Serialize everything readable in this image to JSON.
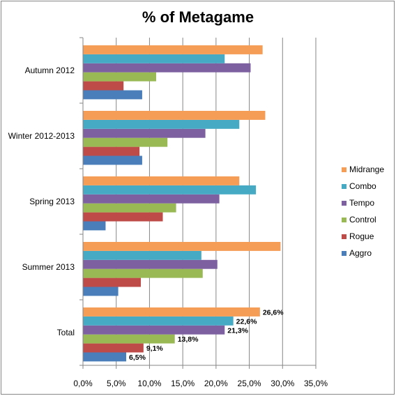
{
  "chart_data": {
    "type": "bar",
    "orientation": "horizontal",
    "title": "% of Metagame",
    "xlabel": "",
    "ylabel": "",
    "xlim": [
      0,
      35
    ],
    "x_ticks": [
      "0,0%",
      "5,0%",
      "10,0%",
      "15,0%",
      "20,0%",
      "25,0%",
      "30,0%",
      "35,0%"
    ],
    "grid": true,
    "legend_position": "right",
    "categories": [
      "Autumn 2012",
      "Winter 2012-2013",
      "Spring 2013",
      "Summer 2013",
      "Total"
    ],
    "series": [
      {
        "name": "Aggro",
        "color": "#4A7EBB",
        "values": [
          8.9,
          8.9,
          3.4,
          5.3,
          6.5
        ]
      },
      {
        "name": "Rogue",
        "color": "#BE4B48",
        "values": [
          6.1,
          8.5,
          12.0,
          8.7,
          9.1
        ]
      },
      {
        "name": "Control",
        "color": "#98B954",
        "values": [
          11.0,
          12.7,
          14.0,
          18.0,
          13.8
        ]
      },
      {
        "name": "Tempo",
        "color": "#7D60A0",
        "values": [
          25.2,
          18.4,
          20.5,
          20.2,
          21.3
        ]
      },
      {
        "name": "Combo",
        "color": "#46AAC5",
        "values": [
          21.3,
          23.5,
          26.0,
          17.8,
          22.6
        ]
      },
      {
        "name": "Midrange",
        "color": "#F59D56",
        "values": [
          27.0,
          27.4,
          23.5,
          29.7,
          26.6
        ]
      }
    ],
    "data_labels": {
      "category": "Total",
      "Aggro": "6,5%",
      "Rogue": "9,1%",
      "Control": "13,8%",
      "Tempo": "21,3%",
      "Combo": "22,6%",
      "Midrange": "26,6%"
    },
    "legend_order": [
      "Midrange",
      "Combo",
      "Tempo",
      "Control",
      "Rogue",
      "Aggro"
    ]
  }
}
